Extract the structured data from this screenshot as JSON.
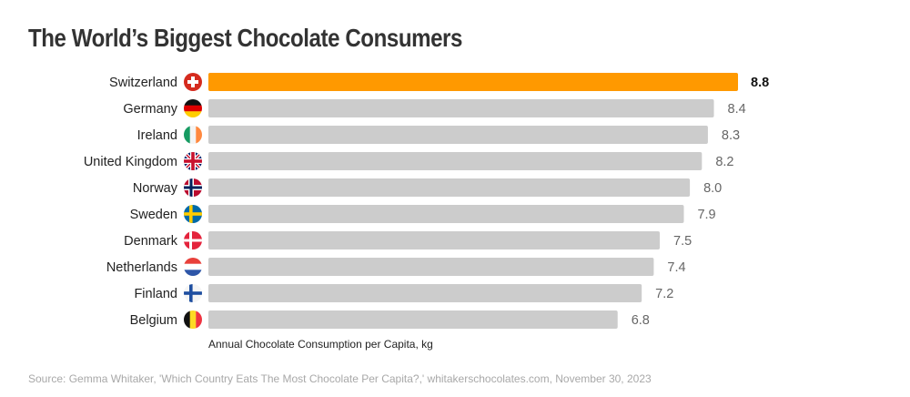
{
  "chart_data": {
    "type": "bar",
    "orientation": "horizontal",
    "title": "The World’s Biggest Chocolate Consumers",
    "xlabel": "Annual Chocolate Consumption per Capita, kg",
    "ylabel": "",
    "xlim": [
      0,
      8.8
    ],
    "grid": false,
    "highlight_index": 0,
    "highlight_color": "#FF9900",
    "bar_color": "#CCCCCC",
    "categories": [
      "Switzerland",
      "Germany",
      "Ireland",
      "United Kingdom",
      "Norway",
      "Sweden",
      "Denmark",
      "Netherlands",
      "Finland",
      "Belgium"
    ],
    "flags": [
      "switzerland-flag-icon",
      "germany-flag-icon",
      "ireland-flag-icon",
      "united-kingdom-flag-icon",
      "norway-flag-icon",
      "sweden-flag-icon",
      "denmark-flag-icon",
      "netherlands-flag-icon",
      "finland-flag-icon",
      "belgium-flag-icon"
    ],
    "values": [
      8.8,
      8.4,
      8.3,
      8.2,
      8.0,
      7.9,
      7.5,
      7.4,
      7.2,
      6.8
    ],
    "value_labels": [
      "8.8",
      "8.4",
      "8.3",
      "8.2",
      "8.0",
      "7.9",
      "7.5",
      "7.4",
      "7.2",
      "6.8"
    ]
  },
  "source": "Source: Gemma Whitaker, 'Which Country Eats The Most Chocolate Per Capita?,' whitakerschocolates.com, November 30, 2023"
}
